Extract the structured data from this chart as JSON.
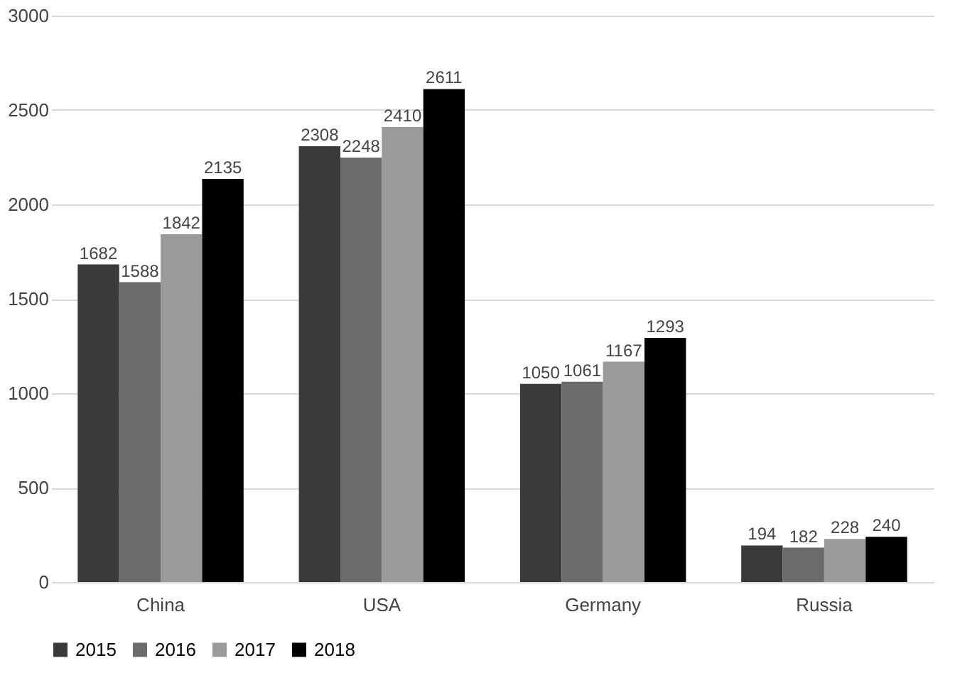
{
  "chart_data": {
    "type": "bar",
    "categories": [
      "China",
      "USA",
      "Germany",
      "Russia"
    ],
    "series": [
      {
        "name": "2015",
        "color": "#3a3a3a",
        "values": [
          1682,
          2308,
          1050,
          194
        ]
      },
      {
        "name": "2016",
        "color": "#6b6b6b",
        "values": [
          1588,
          2248,
          1061,
          182
        ]
      },
      {
        "name": "2017",
        "color": "#9a9a9a",
        "values": [
          1842,
          2410,
          1167,
          228
        ]
      },
      {
        "name": "2018",
        "color": "#000000",
        "values": [
          2135,
          2611,
          1293,
          240
        ]
      }
    ],
    "ylim": [
      0,
      3000
    ],
    "yticks": [
      0,
      500,
      1000,
      1500,
      2000,
      2500,
      3000
    ],
    "grid": "y",
    "legend": "bottom",
    "data_labels": true
  }
}
